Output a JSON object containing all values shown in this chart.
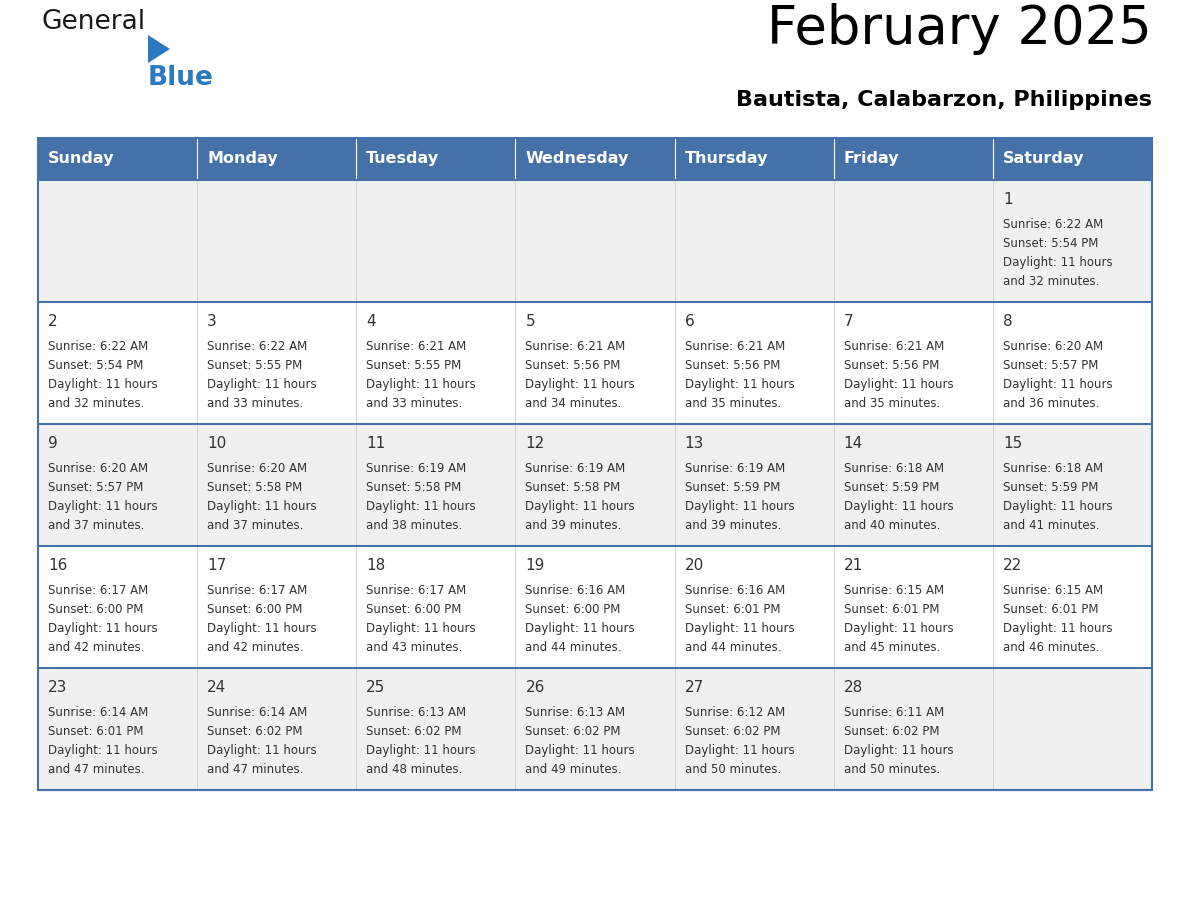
{
  "title": "February 2025",
  "subtitle": "Bautista, Calabarzon, Philippines",
  "days_of_week": [
    "Sunday",
    "Monday",
    "Tuesday",
    "Wednesday",
    "Thursday",
    "Friday",
    "Saturday"
  ],
  "header_bg": "#4472a8",
  "header_text": "#ffffff",
  "cell_bg_light": "#f0f0f0",
  "cell_bg_white": "#ffffff",
  "row_line_color": "#4472a8",
  "text_color": "#333333",
  "logo_general_color": "#1a1a1a",
  "logo_blue_color": "#2b7abf",
  "logo_triangle_color": "#2b7abf",
  "calendar_data": [
    [
      null,
      null,
      null,
      null,
      null,
      null,
      {
        "day": 1,
        "sunrise": "6:22 AM",
        "sunset": "5:54 PM",
        "daylight": "11 hours and 32 minutes."
      }
    ],
    [
      {
        "day": 2,
        "sunrise": "6:22 AM",
        "sunset": "5:54 PM",
        "daylight": "11 hours and 32 minutes."
      },
      {
        "day": 3,
        "sunrise": "6:22 AM",
        "sunset": "5:55 PM",
        "daylight": "11 hours and 33 minutes."
      },
      {
        "day": 4,
        "sunrise": "6:21 AM",
        "sunset": "5:55 PM",
        "daylight": "11 hours and 33 minutes."
      },
      {
        "day": 5,
        "sunrise": "6:21 AM",
        "sunset": "5:56 PM",
        "daylight": "11 hours and 34 minutes."
      },
      {
        "day": 6,
        "sunrise": "6:21 AM",
        "sunset": "5:56 PM",
        "daylight": "11 hours and 35 minutes."
      },
      {
        "day": 7,
        "sunrise": "6:21 AM",
        "sunset": "5:56 PM",
        "daylight": "11 hours and 35 minutes."
      },
      {
        "day": 8,
        "sunrise": "6:20 AM",
        "sunset": "5:57 PM",
        "daylight": "11 hours and 36 minutes."
      }
    ],
    [
      {
        "day": 9,
        "sunrise": "6:20 AM",
        "sunset": "5:57 PM",
        "daylight": "11 hours and 37 minutes."
      },
      {
        "day": 10,
        "sunrise": "6:20 AM",
        "sunset": "5:58 PM",
        "daylight": "11 hours and 37 minutes."
      },
      {
        "day": 11,
        "sunrise": "6:19 AM",
        "sunset": "5:58 PM",
        "daylight": "11 hours and 38 minutes."
      },
      {
        "day": 12,
        "sunrise": "6:19 AM",
        "sunset": "5:58 PM",
        "daylight": "11 hours and 39 minutes."
      },
      {
        "day": 13,
        "sunrise": "6:19 AM",
        "sunset": "5:59 PM",
        "daylight": "11 hours and 39 minutes."
      },
      {
        "day": 14,
        "sunrise": "6:18 AM",
        "sunset": "5:59 PM",
        "daylight": "11 hours and 40 minutes."
      },
      {
        "day": 15,
        "sunrise": "6:18 AM",
        "sunset": "5:59 PM",
        "daylight": "11 hours and 41 minutes."
      }
    ],
    [
      {
        "day": 16,
        "sunrise": "6:17 AM",
        "sunset": "6:00 PM",
        "daylight": "11 hours and 42 minutes."
      },
      {
        "day": 17,
        "sunrise": "6:17 AM",
        "sunset": "6:00 PM",
        "daylight": "11 hours and 42 minutes."
      },
      {
        "day": 18,
        "sunrise": "6:17 AM",
        "sunset": "6:00 PM",
        "daylight": "11 hours and 43 minutes."
      },
      {
        "day": 19,
        "sunrise": "6:16 AM",
        "sunset": "6:00 PM",
        "daylight": "11 hours and 44 minutes."
      },
      {
        "day": 20,
        "sunrise": "6:16 AM",
        "sunset": "6:01 PM",
        "daylight": "11 hours and 44 minutes."
      },
      {
        "day": 21,
        "sunrise": "6:15 AM",
        "sunset": "6:01 PM",
        "daylight": "11 hours and 45 minutes."
      },
      {
        "day": 22,
        "sunrise": "6:15 AM",
        "sunset": "6:01 PM",
        "daylight": "11 hours and 46 minutes."
      }
    ],
    [
      {
        "day": 23,
        "sunrise": "6:14 AM",
        "sunset": "6:01 PM",
        "daylight": "11 hours and 47 minutes."
      },
      {
        "day": 24,
        "sunrise": "6:14 AM",
        "sunset": "6:02 PM",
        "daylight": "11 hours and 47 minutes."
      },
      {
        "day": 25,
        "sunrise": "6:13 AM",
        "sunset": "6:02 PM",
        "daylight": "11 hours and 48 minutes."
      },
      {
        "day": 26,
        "sunrise": "6:13 AM",
        "sunset": "6:02 PM",
        "daylight": "11 hours and 49 minutes."
      },
      {
        "day": 27,
        "sunrise": "6:12 AM",
        "sunset": "6:02 PM",
        "daylight": "11 hours and 50 minutes."
      },
      {
        "day": 28,
        "sunrise": "6:11 AM",
        "sunset": "6:02 PM",
        "daylight": "11 hours and 50 minutes."
      },
      null
    ]
  ],
  "figsize": [
    11.88,
    9.18
  ],
  "dpi": 100
}
